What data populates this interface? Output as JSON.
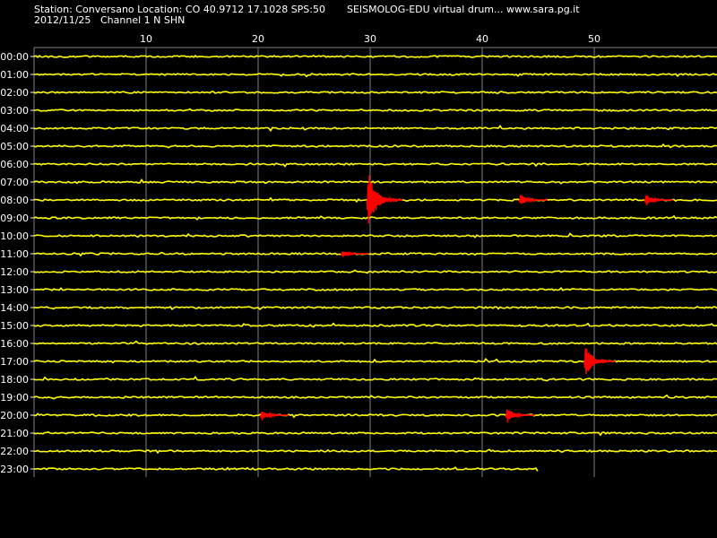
{
  "header": {
    "station_line": "Station: Conversano Location: CO 40.9712 17.1028 SPS:50",
    "software": "SEISMOLOG-EDU virtual drum... www.sara.pg.it",
    "date": "2012/11/25",
    "channel": "Channel 1 N SHN"
  },
  "colors": {
    "background": "#000000",
    "trace": "#ffff00",
    "event": "#ff0000",
    "grid": "#808080",
    "text": "#ffffff"
  },
  "chart_data": {
    "type": "line",
    "title": "",
    "xlabel": "",
    "ylabel": "",
    "xlim": [
      0,
      61
    ],
    "x_ticks": [
      10,
      20,
      30,
      40,
      50
    ],
    "x_tick_labels": [
      "10",
      "20",
      "30",
      "40",
      "50"
    ],
    "grid": true,
    "rows": [
      "00:00",
      "01:00",
      "02:00",
      "03:00",
      "04:00",
      "05:00",
      "06:00",
      "07:00",
      "08:00",
      "09:00",
      "10:00",
      "11:00",
      "12:00",
      "13:00",
      "14:00",
      "15:00",
      "16:00",
      "17:00",
      "18:00",
      "19:00",
      "20:00",
      "21:00",
      "22:00",
      "23:00"
    ],
    "last_row_end_minute": 45,
    "events": [
      {
        "hour": 8,
        "minute": 29.7,
        "amplitude": 1.0
      },
      {
        "hour": 8,
        "minute": 43.3,
        "amplitude": 0.2
      },
      {
        "hour": 8,
        "minute": 54.5,
        "amplitude": 0.2
      },
      {
        "hour": 11,
        "minute": 27.4,
        "amplitude": 0.12
      },
      {
        "hour": 17,
        "minute": 49.1,
        "amplitude": 0.55
      },
      {
        "hour": 20,
        "minute": 20.2,
        "amplitude": 0.2
      },
      {
        "hour": 20,
        "minute": 42.1,
        "amplitude": 0.28
      }
    ]
  }
}
